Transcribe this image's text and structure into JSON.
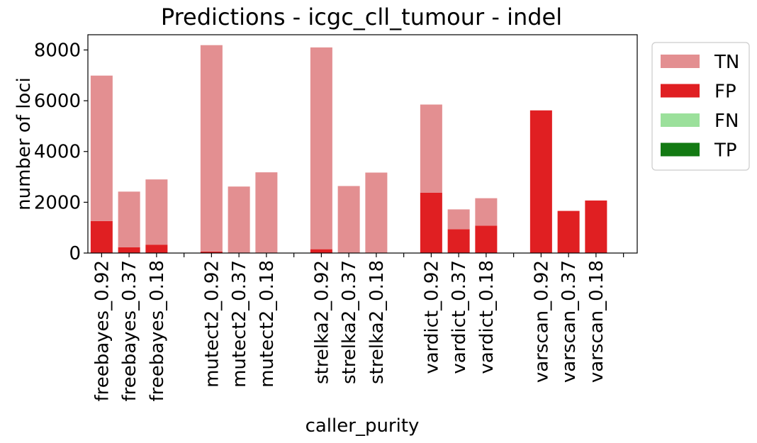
{
  "chart_data": {
    "type": "bar",
    "stacked": true,
    "title": "Predictions - icgc_cll_tumour - indel",
    "xlabel": "caller_purity",
    "ylabel": "number of loci",
    "ylim": [
      0,
      8600
    ],
    "yticks": [
      0,
      2000,
      4000,
      6000,
      8000
    ],
    "grid": false,
    "legend_position": "outside-right",
    "categories": [
      "freebayes_0.92",
      "freebayes_0.37",
      "freebayes_0.18",
      "",
      "mutect2_0.92",
      "mutect2_0.37",
      "mutect2_0.18",
      "",
      "strelka2_0.92",
      "strelka2_0.37",
      "strelka2_0.18",
      "",
      "vardict_0.92",
      "vardict_0.37",
      "vardict_0.18",
      "",
      "varscan_0.92",
      "varscan_0.37",
      "varscan_0.18",
      ""
    ],
    "series": [
      {
        "name": "TN",
        "color": "#e38f91",
        "values": [
          5730,
          2190,
          2570,
          0,
          8130,
          2610,
          3160,
          0,
          7950,
          2630,
          3150,
          0,
          3470,
          780,
          1080,
          0,
          0,
          0,
          0,
          0
        ]
      },
      {
        "name": "FP",
        "color": "#e01f22",
        "values": [
          1260,
          230,
          330,
          0,
          60,
          10,
          20,
          0,
          150,
          10,
          20,
          0,
          2380,
          940,
          1080,
          0,
          5620,
          1660,
          2070,
          0
        ]
      },
      {
        "name": "FN",
        "color": "#9be09b",
        "values": [
          0,
          0,
          0,
          0,
          0,
          0,
          0,
          0,
          0,
          0,
          0,
          0,
          0,
          0,
          0,
          0,
          0,
          0,
          0,
          0
        ]
      },
      {
        "name": "TP",
        "color": "#137a13",
        "values": [
          0,
          0,
          0,
          0,
          0,
          0,
          0,
          0,
          0,
          0,
          0,
          0,
          0,
          0,
          0,
          0,
          0,
          0,
          0,
          0
        ]
      }
    ]
  }
}
